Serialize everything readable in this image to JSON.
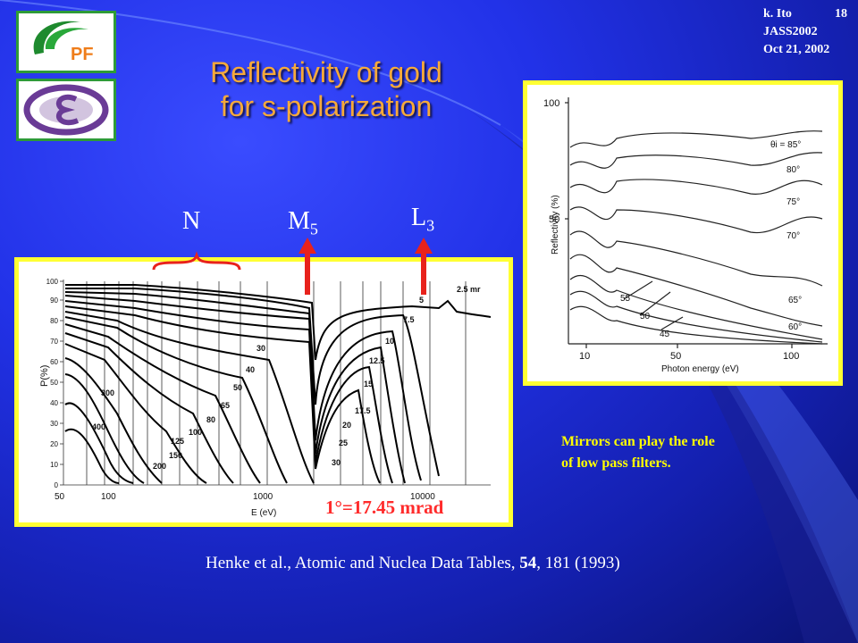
{
  "header": {
    "author": "k. Ito",
    "slide_number": "18",
    "event": "JASS2002",
    "date": "Oct 21, 2002"
  },
  "logos": {
    "top_text": "PF"
  },
  "title": {
    "line1": "Reflectivity of gold",
    "line2": "for s-polarization"
  },
  "edge_labels": {
    "n": "N",
    "m_main": "M",
    "m_sub": "5",
    "l_main": "L",
    "l_sub": "3"
  },
  "left_chart": {
    "ylabel": "P(%)",
    "xlabel": "E (eV)",
    "yticks": [
      "0",
      "10",
      "20",
      "30",
      "40",
      "50",
      "60",
      "70",
      "80",
      "90",
      "100"
    ],
    "xticks": [
      "50",
      "100",
      "1000",
      "10000"
    ],
    "curve_labels": [
      "2.5 mr",
      "5",
      "7.5",
      "10",
      "12.5",
      "15",
      "17.5",
      "20",
      "25",
      "30",
      "30",
      "40",
      "50",
      "65",
      "80",
      "100",
      "125",
      "150",
      "200",
      "300",
      "400"
    ]
  },
  "right_chart": {
    "ylabel": "Reflectivity (%)",
    "xlabel": "Photon energy (eV)",
    "yticks": [
      "100",
      "50"
    ],
    "xticks": [
      "10",
      "50",
      "100"
    ],
    "angle_labels": [
      "θi = 85°",
      "80°",
      "75°",
      "70°",
      "65°",
      "60°",
      "55",
      "50",
      "45"
    ]
  },
  "caption": {
    "line1": "Mirrors can play the role",
    "line2": "of low pass filters."
  },
  "angle_note": "1°=17.45 mrad",
  "reference": {
    "before": "Henke et al., Atomic and Nuclea Data Tables, ",
    "volume": "54",
    "after": ", 181 (1993)"
  },
  "colors": {
    "title": "#f6a93a",
    "caption": "#ffff00",
    "arrow": "#e8221c",
    "panel_border": "#ffff33",
    "logo_border": "#2e9b38"
  }
}
